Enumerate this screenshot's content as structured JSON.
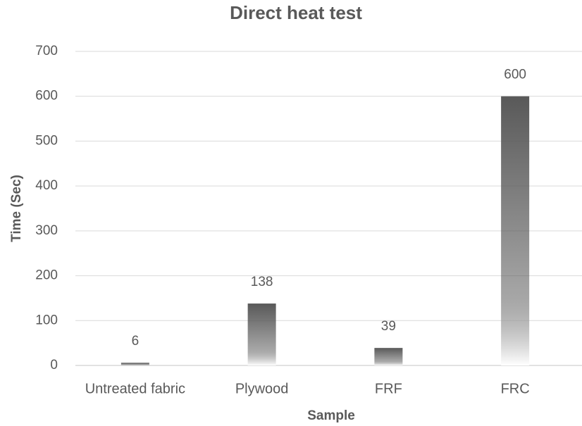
{
  "chart_data": {
    "type": "bar",
    "title": "Direct heat test",
    "x_label": "Sample",
    "y_label": "Time (Sec)",
    "categories": [
      "Untreated fabric",
      "Plywood",
      "FRF",
      "FRC"
    ],
    "values": [
      6,
      138,
      39,
      600
    ],
    "color": "#595959",
    "ylim": [
      0,
      700
    ],
    "yticks": [
      0,
      100,
      200,
      300,
      400,
      500,
      600,
      700
    ],
    "grid": true
  }
}
